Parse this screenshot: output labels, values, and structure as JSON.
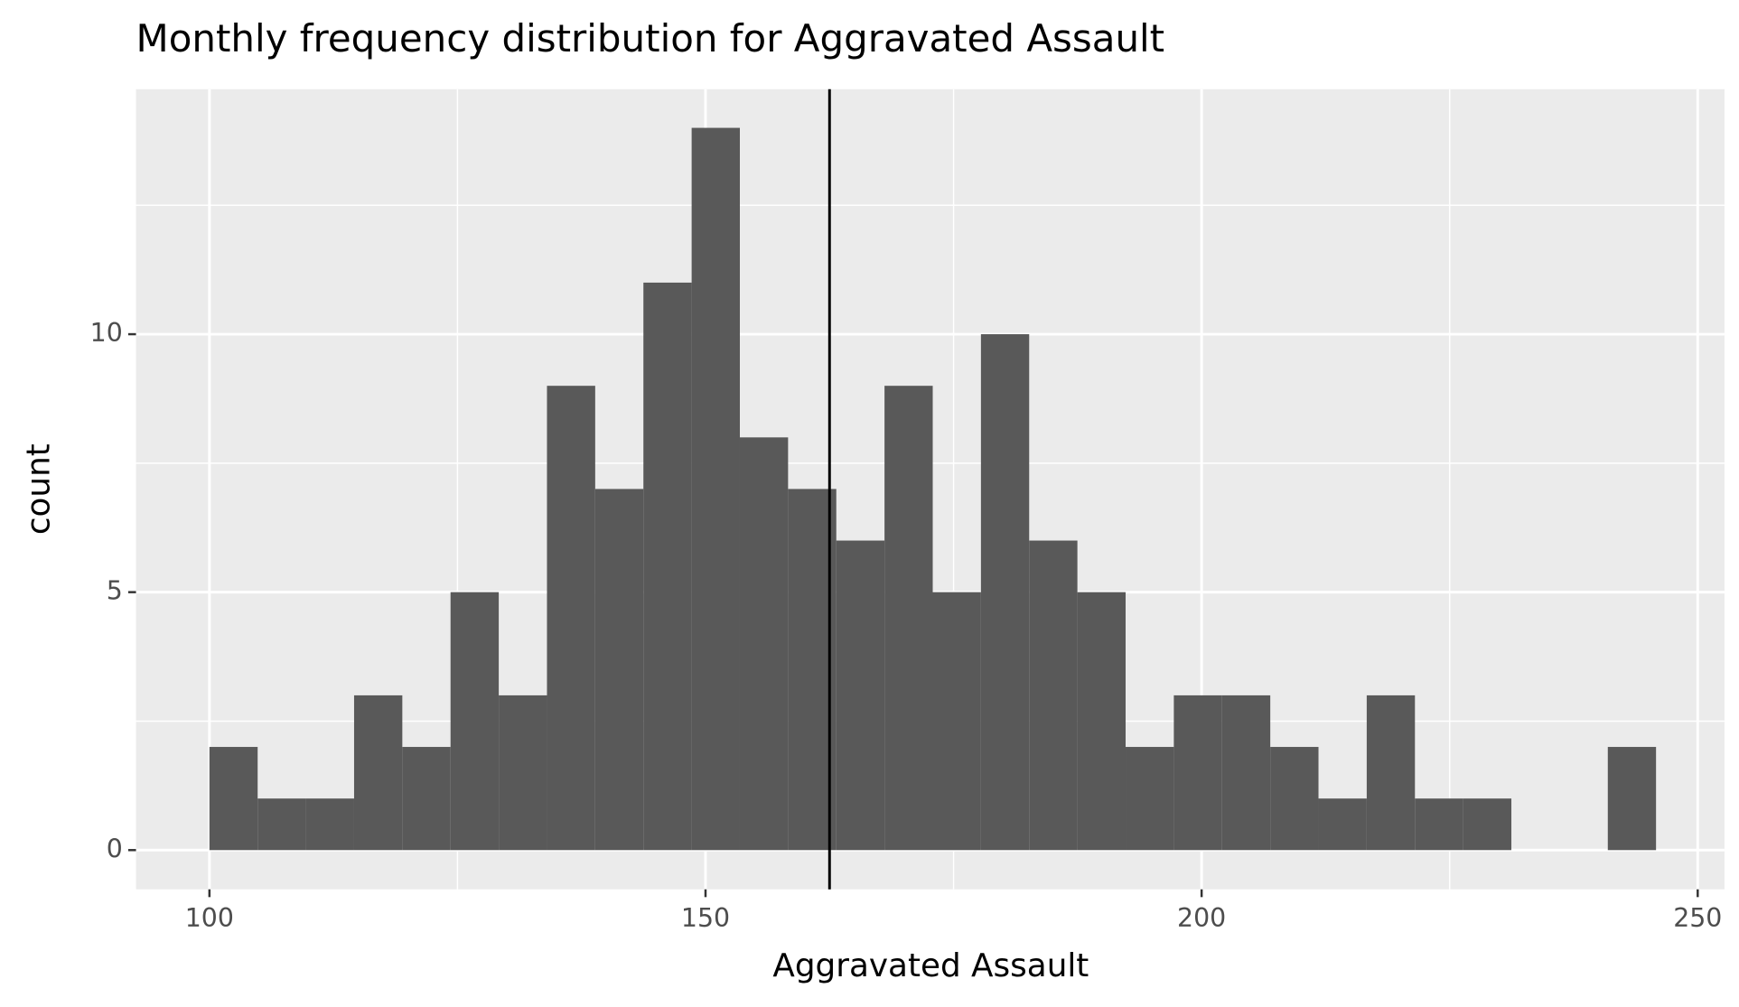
{
  "chart_data": {
    "type": "histogram",
    "title": "Monthly frequency distribution for Aggravated Assault",
    "x_label": "Aggravated Assault",
    "y_label": "count",
    "bins": [
      100,
      104.86,
      109.72,
      114.58,
      119.44,
      124.3,
      129.16,
      134.02,
      138.88,
      143.74,
      148.6,
      153.46,
      158.32,
      163.18,
      168.04,
      172.9,
      177.76,
      182.62,
      187.48,
      192.34,
      197.2,
      202.06,
      206.92,
      211.78,
      216.64,
      221.5,
      226.36,
      231.22,
      236.08,
      240.94,
      245.8
    ],
    "values": [
      2,
      1,
      1,
      3,
      2,
      5,
      3,
      9,
      7,
      11,
      14,
      8,
      7,
      6,
      9,
      5,
      10,
      6,
      5,
      2,
      3,
      3,
      2,
      1,
      3,
      1,
      1,
      0,
      0,
      2
    ],
    "color": "#595959",
    "vline": 162.5,
    "vline_color": "#000000",
    "xlim": [
      92.6,
      252.7
    ],
    "ylim": [
      -0.76,
      14.75
    ],
    "xticks": [
      100,
      150,
      200,
      250
    ],
    "yticks": [
      0,
      5,
      10
    ],
    "x_minor_breaks": [
      125,
      175,
      225
    ],
    "y_minor_breaks": [
      2.5,
      7.5,
      12.5
    ],
    "grid": true
  }
}
